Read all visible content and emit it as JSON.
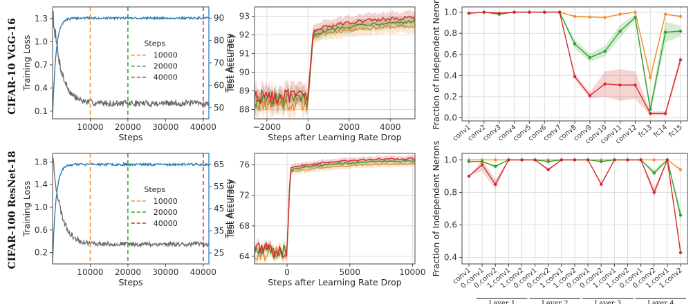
{
  "colors": {
    "orange": "#f28e2b",
    "green": "#2ca02c",
    "red": "#d62728",
    "gray": "#666666",
    "blue": "#1f77b4",
    "grid": "#dddddd"
  },
  "rows": [
    {
      "label": "CIFAR-10  VGG-16"
    },
    {
      "label": "CIFAR-100  ResNet-18"
    }
  ],
  "chart_data": [
    {
      "type": "line",
      "panel": "loss-acc-vgg",
      "xlabel": "Steps",
      "ylabel": "Training Loss",
      "ylabel_right": "Test Accuracy",
      "xlim": [
        0,
        41500
      ],
      "xticks": [
        10000,
        20000,
        30000,
        40000
      ],
      "ylim": [
        0,
        1.45
      ],
      "yticks": [
        0.1,
        0.4,
        0.7,
        1.0,
        1.3
      ],
      "ylim_right": [
        45,
        95
      ],
      "yticks_right": [
        50,
        60,
        70,
        80,
        90
      ],
      "loss": {
        "start": 1.45,
        "plateau": 0.2,
        "noise": 0.04
      },
      "accuracy": {
        "start": 45,
        "plateau": 90,
        "noise": 0.5
      },
      "vlines": [
        {
          "x": 10000,
          "color": "orange"
        },
        {
          "x": 20000,
          "color": "green"
        },
        {
          "x": 40000,
          "color": "red"
        }
      ],
      "legend": {
        "title": "Steps",
        "entries": [
          "10000",
          "20000",
          "40000"
        ]
      }
    },
    {
      "type": "line",
      "panel": "drop-vgg",
      "xlabel": "Steps after Learning Rate Drop",
      "ylabel": "Test Accuracy",
      "xlim": [
        -2600,
        5200
      ],
      "xticks": [
        -2000,
        0,
        2000,
        4000
      ],
      "ylim": [
        87.5,
        93.5
      ],
      "yticks": [
        88,
        89,
        90,
        91,
        92,
        93
      ],
      "series": [
        {
          "color": "orange",
          "before": 88.3,
          "jump": 91.9,
          "final": 92.5,
          "band": 0.35
        },
        {
          "color": "green",
          "before": 88.5,
          "jump": 92.0,
          "final": 92.75,
          "band": 0.3
        },
        {
          "color": "red",
          "before": 88.7,
          "jump": 92.2,
          "final": 92.95,
          "band": 0.35
        }
      ]
    },
    {
      "type": "line",
      "panel": "frac-vgg",
      "ylabel": "Fraction of Independent Neron",
      "ylim": [
        -0.03,
        1.05
      ],
      "yticks": [
        0.0,
        0.2,
        0.4,
        0.6,
        0.8,
        1.0
      ],
      "categories": [
        "conv1",
        "conv2",
        "conv3",
        "conv4",
        "conv5",
        "conv6",
        "conv7",
        "conv8",
        "conv9",
        "conv10",
        "conv11",
        "conv12",
        "fc13",
        "fc14",
        "fc15"
      ],
      "series": [
        {
          "color": "orange",
          "values": [
            0.99,
            1.0,
            0.99,
            1.0,
            1.0,
            1.0,
            1.0,
            0.96,
            0.955,
            0.95,
            0.98,
            1.0,
            0.38,
            0.98,
            0.96
          ],
          "band": [
            0,
            0,
            0,
            0,
            0,
            0,
            0,
            0.01,
            0.01,
            0.01,
            0.01,
            0,
            0.05,
            0.01,
            0.01
          ]
        },
        {
          "color": "green",
          "values": [
            0.99,
            1.0,
            0.98,
            1.0,
            1.0,
            1.0,
            1.0,
            0.7,
            0.57,
            0.63,
            0.82,
            0.95,
            0.08,
            0.81,
            0.82
          ],
          "band": [
            0,
            0,
            0,
            0,
            0,
            0,
            0,
            0.04,
            0.04,
            0.05,
            0.06,
            0.03,
            0.05,
            0.1,
            0.05
          ]
        },
        {
          "color": "red",
          "values": [
            0.99,
            1.0,
            0.99,
            1.0,
            1.0,
            1.0,
            1.0,
            0.39,
            0.21,
            0.32,
            0.31,
            0.31,
            0.04,
            0.04,
            0.55
          ],
          "band": [
            0,
            0,
            0,
            0,
            0,
            0,
            0,
            0.03,
            0.03,
            0.12,
            0.15,
            0.13,
            0.02,
            0.02,
            0.05
          ]
        }
      ]
    },
    {
      "type": "line",
      "panel": "loss-acc-resnet",
      "xlabel": "Steps",
      "ylabel": "Training Loss",
      "ylabel_right": "Test Accuracy",
      "xlim": [
        0,
        41500
      ],
      "xticks": [
        10000,
        20000,
        30000,
        40000
      ],
      "ylim": [
        0,
        1.95
      ],
      "yticks": [
        0.2,
        0.6,
        1.0,
        1.4,
        1.8
      ],
      "ylim_right": [
        20,
        70
      ],
      "yticks_right": [
        25,
        35,
        45,
        55,
        65
      ],
      "loss": {
        "start": 1.95,
        "plateau": 0.35,
        "noise": 0.04
      },
      "accuracy": {
        "start": 20,
        "plateau": 65,
        "noise": 0.5
      },
      "vlines": [
        {
          "x": 10000,
          "color": "orange"
        },
        {
          "x": 20000,
          "color": "green"
        },
        {
          "x": 40000,
          "color": "red"
        }
      ],
      "legend": {
        "title": "Steps",
        "entries": [
          "10000",
          "20000",
          "40000"
        ]
      }
    },
    {
      "type": "line",
      "panel": "drop-resnet",
      "xlabel": "Steps after Learning Rate Drop",
      "ylabel": "Test Accuracy",
      "xlim": [
        -2600,
        10200
      ],
      "xticks": [
        0,
        5000,
        10000
      ],
      "ylim": [
        63,
        77.5
      ],
      "yticks": [
        64,
        68,
        72,
        76
      ],
      "series": [
        {
          "color": "orange",
          "before": 64.4,
          "jump": 75.0,
          "final": 76.2,
          "band": 0.4
        },
        {
          "color": "green",
          "before": 64.6,
          "jump": 75.3,
          "final": 76.6,
          "band": 0.35
        },
        {
          "color": "red",
          "before": 64.8,
          "jump": 75.6,
          "final": 76.9,
          "band": 0.4
        }
      ]
    },
    {
      "type": "line",
      "panel": "frac-resnet",
      "ylabel": "Fraction of Independent Nerons",
      "ylim": [
        0.36,
        1.04
      ],
      "yticks": [
        0.4,
        0.6,
        0.8,
        1.0
      ],
      "categories": [
        "conv1",
        "0.conv1",
        "0.conv2",
        "1.conv1",
        "1.conv2",
        "0.conv1",
        "0.conv2",
        "1.conv1",
        "1.conv2",
        "0.conv1",
        "0.conv2",
        "1.conv1",
        "1.conv2",
        "0.conv1",
        "0.conv2",
        "1.conv1",
        "1.conv2"
      ],
      "groups": [
        {
          "label": "Layer 1",
          "from": 1,
          "to": 4
        },
        {
          "label": "Layer 2",
          "from": 5,
          "to": 8
        },
        {
          "label": "Layer 3",
          "from": 9,
          "to": 12
        },
        {
          "label": "Layer 4",
          "from": 13,
          "to": 16
        }
      ],
      "series": [
        {
          "color": "orange",
          "values": [
            1.0,
            1.0,
            1.0,
            1.0,
            1.0,
            1.0,
            1.0,
            1.0,
            1.0,
            1.0,
            1.0,
            1.0,
            1.0,
            1.0,
            1.0,
            1.0,
            0.94
          ],
          "band": [
            0,
            0,
            0,
            0,
            0,
            0,
            0,
            0,
            0,
            0,
            0,
            0,
            0,
            0,
            0,
            0,
            0.01
          ]
        },
        {
          "color": "green",
          "values": [
            0.99,
            0.99,
            0.96,
            1.0,
            1.0,
            1.0,
            0.99,
            1.0,
            1.0,
            1.0,
            0.99,
            1.0,
            1.0,
            1.0,
            0.92,
            1.0,
            0.66
          ],
          "band": [
            0,
            0,
            0.01,
            0,
            0,
            0,
            0,
            0,
            0,
            0,
            0,
            0,
            0,
            0,
            0.02,
            0,
            0.04
          ]
        },
        {
          "color": "red",
          "values": [
            0.9,
            0.97,
            0.85,
            1.0,
            1.0,
            1.0,
            0.94,
            1.0,
            1.0,
            1.0,
            0.85,
            1.0,
            1.0,
            1.0,
            0.8,
            1.0,
            0.43
          ],
          "band": [
            0,
            0.04,
            0.03,
            0,
            0,
            0,
            0.01,
            0,
            0,
            0,
            0.01,
            0,
            0,
            0,
            0.03,
            0,
            0.02
          ]
        }
      ]
    }
  ]
}
